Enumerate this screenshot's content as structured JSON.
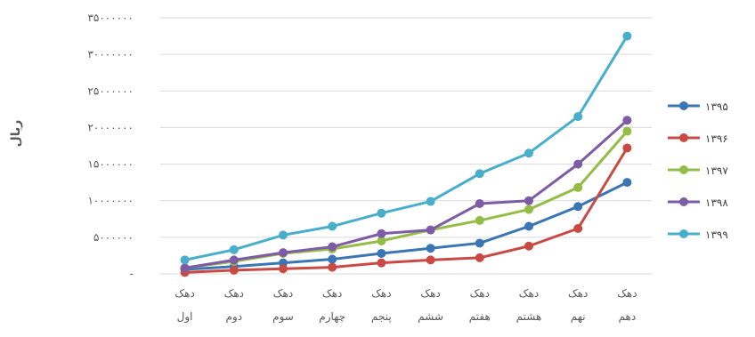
{
  "chart_data": {
    "type": "line",
    "title": "",
    "ylabel": "ریال",
    "ylim": [
      0,
      35000000
    ],
    "y_ticks": [
      "-",
      "۵۰۰۰۰۰۰",
      "۱۰۰۰۰۰۰۰",
      "۱۵۰۰۰۰۰۰",
      "۲۰۰۰۰۰۰۰",
      "۲۵۰۰۰۰۰۰",
      "۳۰۰۰۰۰۰۰",
      "۳۵۰۰۰۰۰۰"
    ],
    "categories": [
      {
        "line1": "دهک",
        "line2": "اول"
      },
      {
        "line1": "دهک",
        "line2": "دوم"
      },
      {
        "line1": "دهک",
        "line2": "سوم"
      },
      {
        "line1": "دهک",
        "line2": "چهارم"
      },
      {
        "line1": "دهک",
        "line2": "پنجم"
      },
      {
        "line1": "دهک",
        "line2": "ششم"
      },
      {
        "line1": "دهک",
        "line2": "هفتم"
      },
      {
        "line1": "دهک",
        "line2": "هشتم"
      },
      {
        "line1": "دهک",
        "line2": "نهم"
      },
      {
        "line1": "دهک",
        "line2": "دهم"
      }
    ],
    "grid": true,
    "legend_position": "right",
    "series": [
      {
        "name": "۱۳۹۵",
        "color": "#3a75b4",
        "values": [
          600000,
          1000000,
          1500000,
          2000000,
          2800000,
          3500000,
          4200000,
          6500000,
          9200000,
          12500000
        ]
      },
      {
        "name": "۱۳۹۶",
        "color": "#c94a45",
        "values": [
          200000,
          500000,
          700000,
          900000,
          1500000,
          1900000,
          2200000,
          3800000,
          6200000,
          17200000
        ]
      },
      {
        "name": "۱۳۹۷",
        "color": "#93bd45",
        "values": [
          800000,
          1700000,
          2800000,
          3400000,
          4500000,
          6000000,
          7300000,
          8800000,
          11800000,
          19500000
        ]
      },
      {
        "name": "۱۳۹۸",
        "color": "#7e5ba6",
        "values": [
          800000,
          1900000,
          2900000,
          3700000,
          5500000,
          6000000,
          9600000,
          10000000,
          15000000,
          21000000
        ]
      },
      {
        "name": "۱۳۹۹",
        "color": "#48aecb",
        "values": [
          1900000,
          3300000,
          5300000,
          6500000,
          8300000,
          9900000,
          13700000,
          16500000,
          21500000,
          32500000
        ]
      }
    ]
  }
}
